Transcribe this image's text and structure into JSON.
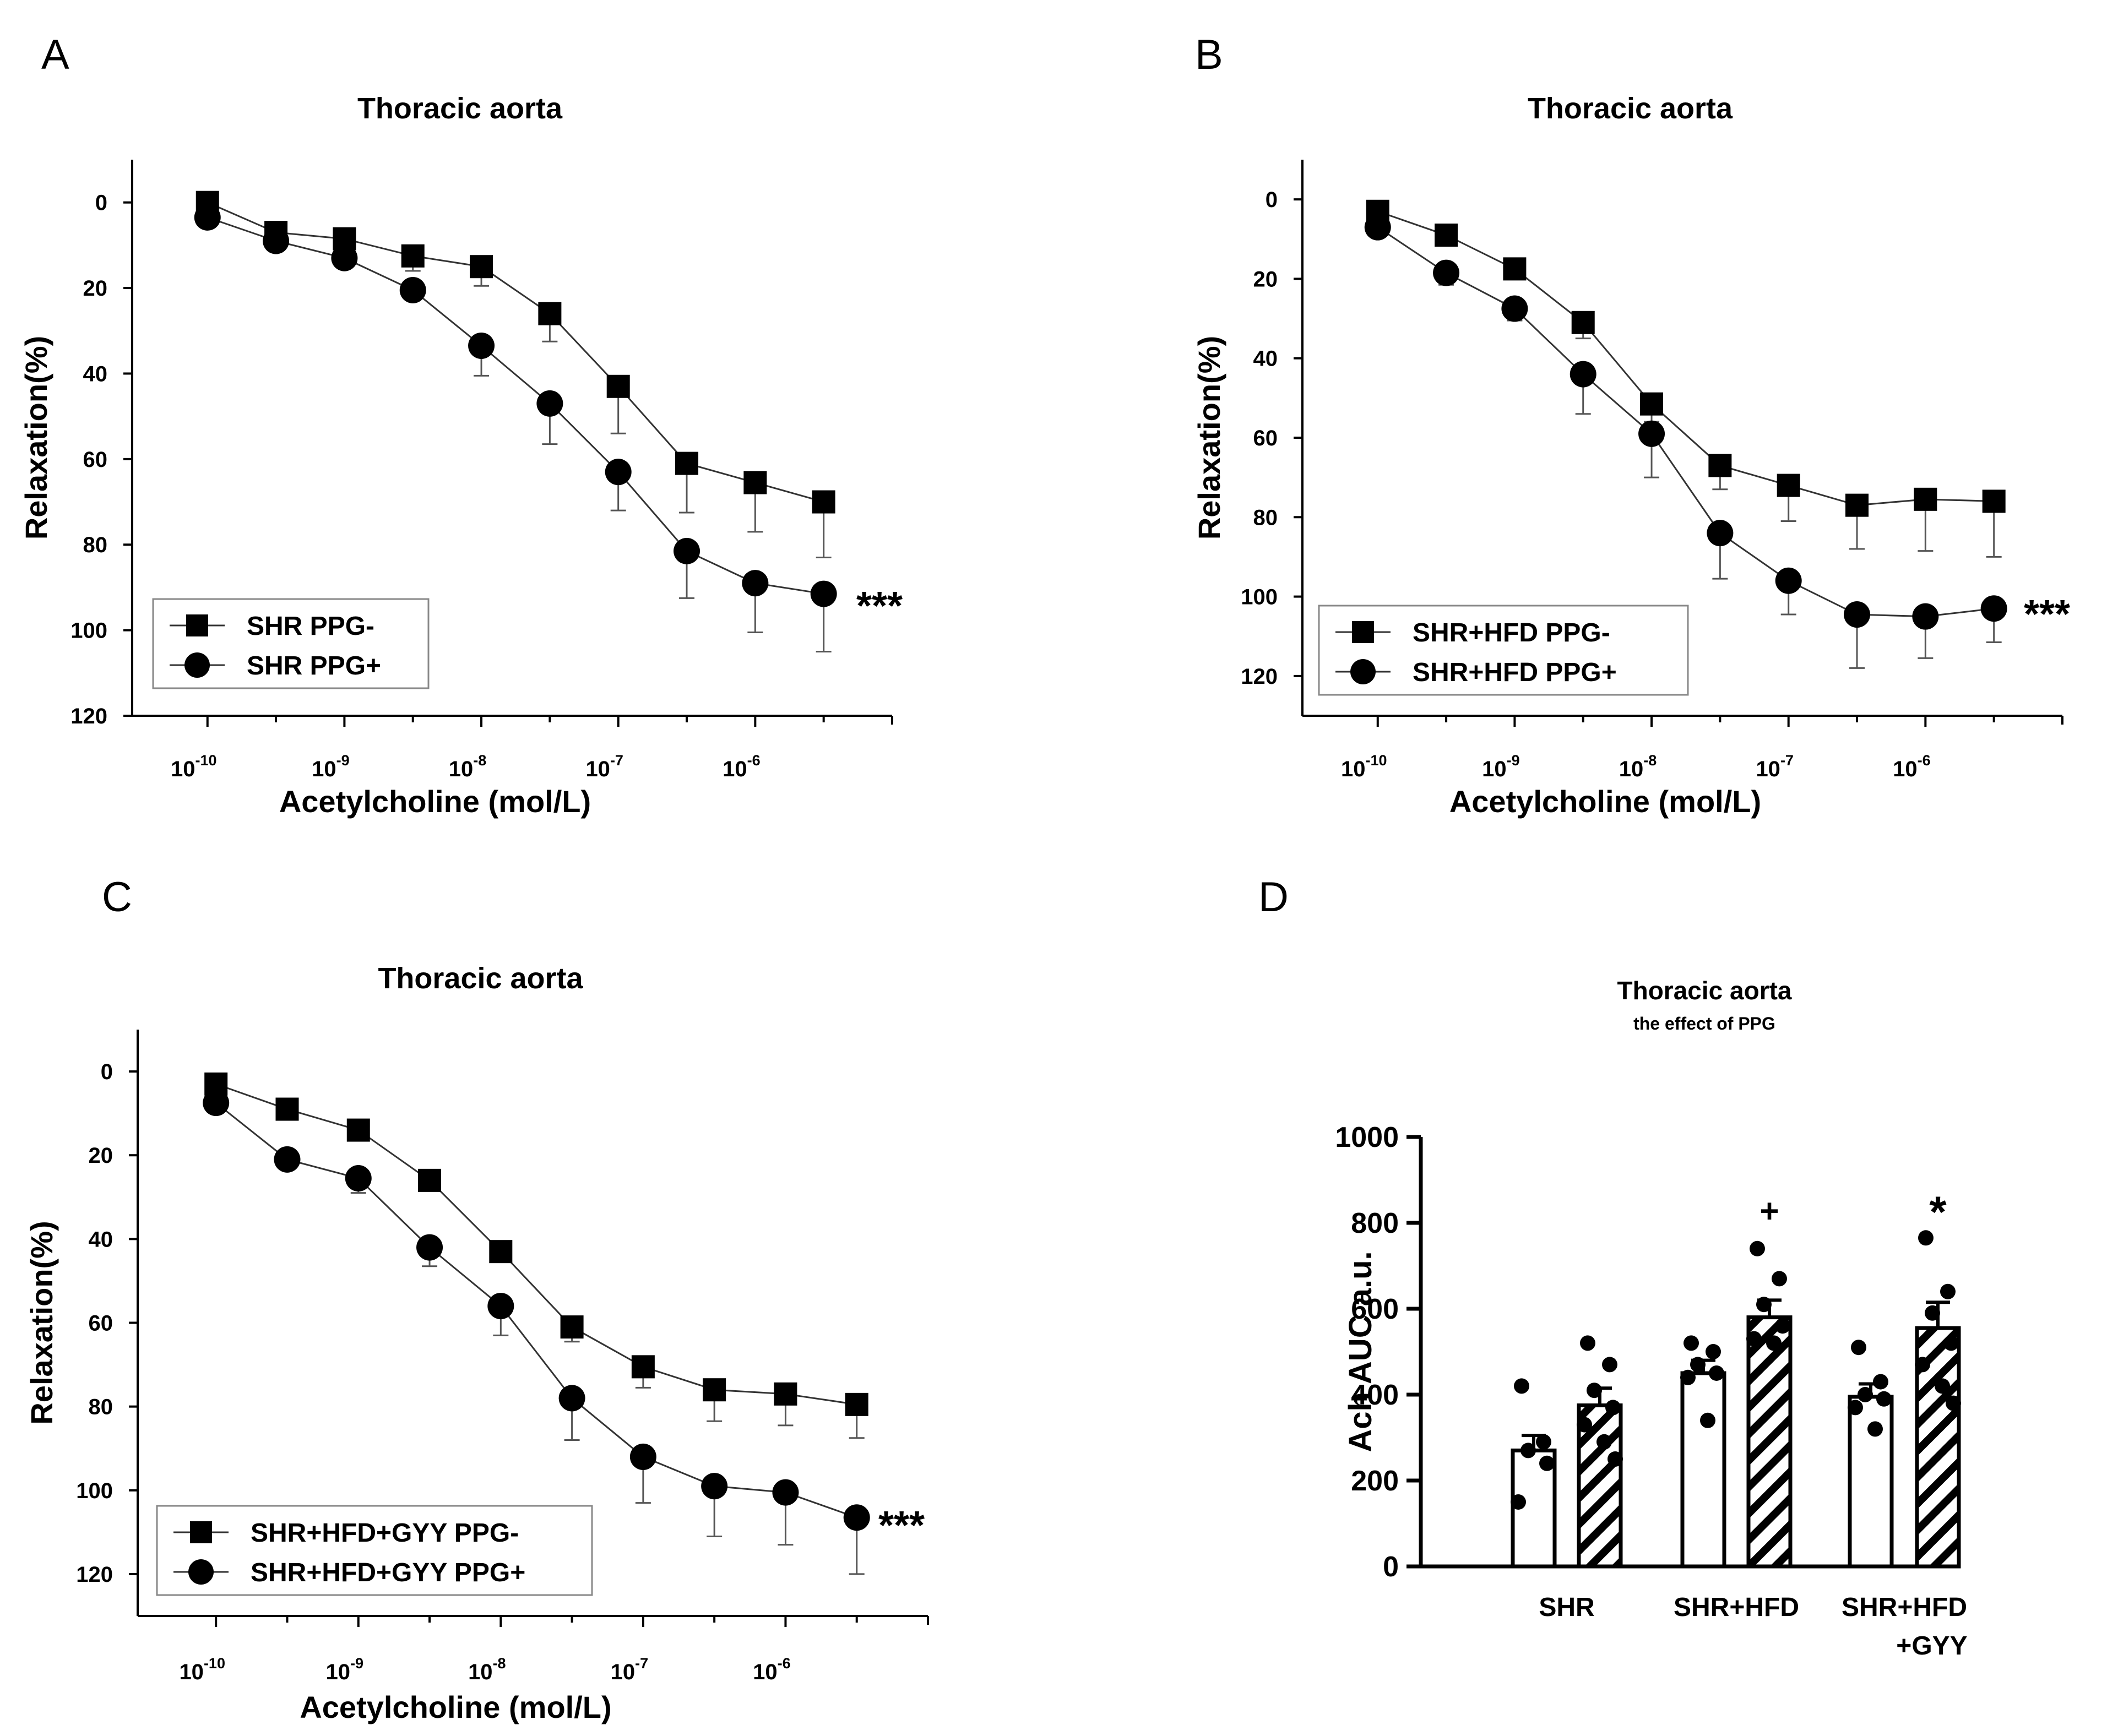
{
  "chart_data": [
    {
      "panel": "A",
      "type": "line",
      "title": "Thoracic aorta",
      "xlabel": "Acetylcholine (mol/L)",
      "ylabel": "Relaxation(%)",
      "x_scale": "log10",
      "x_ticks": [
        {
          "exp": -10,
          "base": "10",
          "sup": "-10"
        },
        {
          "exp": -9,
          "base": "10",
          "sup": "-9"
        },
        {
          "exp": -8,
          "base": "10",
          "sup": "-8"
        },
        {
          "exp": -7,
          "base": "10",
          "sup": "-7"
        },
        {
          "exp": -6,
          "base": "10",
          "sup": "-6"
        }
      ],
      "x_range": [
        -10.55,
        -5.0
      ],
      "y_range": [
        -10,
        120
      ],
      "y_inverted": true,
      "y_ticks": [
        "0",
        "20",
        "40",
        "60",
        "80",
        "100",
        "120"
      ],
      "x": [
        -10,
        -9.5,
        -9,
        -8.5,
        -8,
        -7.5,
        -7,
        -6.5,
        -6,
        -5.5
      ],
      "series": [
        {
          "name": "SHR PPG-",
          "marker": "square",
          "values": [
            0,
            7,
            8.5,
            12.5,
            15,
            26,
            43,
            61,
            65.5,
            70
          ],
          "errors": [
            1,
            1.5,
            2.5,
            3.5,
            4.5,
            6.5,
            11,
            11.5,
            11.5,
            13
          ]
        },
        {
          "name": "SHR PPG+",
          "marker": "circle",
          "values": [
            3.5,
            9,
            13,
            20.5,
            33.5,
            47,
            63,
            81.5,
            89,
            91.5
          ],
          "errors": [
            1,
            1,
            1,
            1.5,
            7,
            9.5,
            9,
            11,
            11.5,
            13.5
          ]
        }
      ],
      "annotation": "***",
      "legend_position": "lower-left"
    },
    {
      "panel": "B",
      "type": "line",
      "title": "Thoracic aorta",
      "xlabel": "Acetylcholine (mol/L)",
      "ylabel": "Relaxation(%)",
      "x_scale": "log10",
      "x_ticks": [
        {
          "exp": -10,
          "base": "10",
          "sup": "-10"
        },
        {
          "exp": -9,
          "base": "10",
          "sup": "-9"
        },
        {
          "exp": -8,
          "base": "10",
          "sup": "-8"
        },
        {
          "exp": -7,
          "base": "10",
          "sup": "-7"
        },
        {
          "exp": -6,
          "base": "10",
          "sup": "-6"
        }
      ],
      "x_range": [
        -10.55,
        -5.0
      ],
      "y_range": [
        -10,
        130
      ],
      "y_inverted": true,
      "y_ticks": [
        "0",
        "20",
        "40",
        "60",
        "80",
        "100",
        "120"
      ],
      "x": [
        -10,
        -9.5,
        -9,
        -8.5,
        -8,
        -7.5,
        -7,
        -6.5,
        -6,
        -5.5
      ],
      "series": [
        {
          "name": "SHR+HFD PPG-",
          "marker": "square",
          "values": [
            3,
            9,
            17.5,
            31,
            51.5,
            67,
            72,
            77,
            75.5,
            76
          ],
          "errors": [
            1,
            1,
            1.5,
            4,
            4.5,
            6,
            9,
            11,
            13,
            14
          ]
        },
        {
          "name": "SHR+HFD PPG+",
          "marker": "circle",
          "values": [
            7,
            18.5,
            27.5,
            44,
            59,
            84,
            96,
            104.5,
            105,
            103
          ],
          "errors": [
            1,
            3,
            3,
            10,
            11,
            11.5,
            8.5,
            13.5,
            10.5,
            8.5
          ]
        }
      ],
      "annotation": "***",
      "legend_position": "lower-left"
    },
    {
      "panel": "C",
      "type": "line",
      "title": "Thoracic aorta",
      "xlabel": "Acetylcholine (mol/L)",
      "ylabel": "Relaxation(%)",
      "x_scale": "log10",
      "x_ticks": [
        {
          "exp": -10,
          "base": "10",
          "sup": "-10"
        },
        {
          "exp": -9,
          "base": "10",
          "sup": "-9"
        },
        {
          "exp": -8,
          "base": "10",
          "sup": "-8"
        },
        {
          "exp": -7,
          "base": "10",
          "sup": "-7"
        },
        {
          "exp": -6,
          "base": "10",
          "sup": "-6"
        }
      ],
      "x_range": [
        -10.55,
        -5.0
      ],
      "y_range": [
        -10,
        130
      ],
      "y_inverted": true,
      "y_ticks": [
        "0",
        "20",
        "40",
        "60",
        "80",
        "100",
        "120"
      ],
      "x": [
        -10,
        -9.5,
        -9,
        -8.5,
        -8,
        -7.5,
        -7,
        -6.5,
        -6,
        -5.5
      ],
      "series": [
        {
          "name": "SHR+HFD+GYY PPG-",
          "marker": "square",
          "values": [
            3,
            9,
            14,
            26,
            43,
            61,
            70.5,
            76,
            77,
            79.5
          ],
          "errors": [
            1,
            1,
            1,
            1.5,
            1.5,
            3.5,
            5,
            7.5,
            7.5,
            8
          ]
        },
        {
          "name": "SHR+HFD+GYY PPG+",
          "marker": "circle",
          "values": [
            7.5,
            21,
            25.5,
            42,
            56,
            78,
            92,
            99,
            100.5,
            106.5
          ],
          "errors": [
            1,
            1,
            3.5,
            4.5,
            7,
            10,
            11,
            12,
            12.5,
            13.5
          ]
        }
      ],
      "annotation": "***",
      "legend_position": "lower-left"
    },
    {
      "panel": "D",
      "type": "bar",
      "title": "Thoracic aorta",
      "subtitle": "the effect of PPG",
      "ylabel": "Ach AUC a.u.",
      "ylim": [
        0,
        1000
      ],
      "y_ticks": [
        "0",
        "200",
        "400",
        "600",
        "800",
        "1000"
      ],
      "group_labels": [
        [
          "SHR"
        ],
        [
          "SHR+HFD"
        ],
        [
          "SHR+HFD",
          "+GYY"
        ]
      ],
      "bars": [
        {
          "group": "SHR",
          "condition": "PPG-",
          "fill": "open",
          "value": 270,
          "sem": 35,
          "points": [
            420,
            290,
            270,
            240,
            150
          ]
        },
        {
          "group": "SHR",
          "condition": "PPG+",
          "fill": "hatched",
          "value": 375,
          "sem": 40,
          "points": [
            520,
            470,
            410,
            370,
            330,
            290,
            250
          ]
        },
        {
          "group": "SHR+HFD",
          "condition": "PPG-",
          "fill": "open",
          "value": 450,
          "sem": 30,
          "points": [
            520,
            500,
            470,
            450,
            440,
            340
          ]
        },
        {
          "group": "SHR+HFD",
          "condition": "PPG+",
          "fill": "hatched",
          "value": 580,
          "sem": 40,
          "points": [
            740,
            670,
            610,
            560,
            530,
            520
          ],
          "annotation": "+"
        },
        {
          "group": "SHR+HFD+GYY",
          "condition": "PPG-",
          "fill": "open",
          "value": 395,
          "sem": 30,
          "points": [
            510,
            430,
            400,
            390,
            370,
            320
          ]
        },
        {
          "group": "SHR+HFD+GYY",
          "condition": "PPG+",
          "fill": "hatched",
          "value": 555,
          "sem": 60,
          "points": [
            765,
            640,
            590,
            520,
            470,
            420,
            380
          ],
          "annotation": "*"
        }
      ]
    }
  ]
}
